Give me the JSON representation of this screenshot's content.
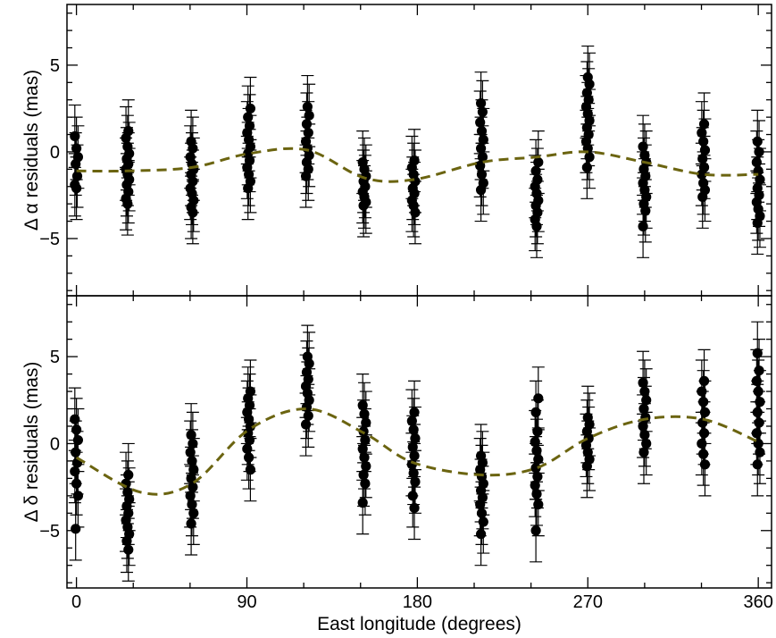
{
  "chart_data": [
    {
      "type": "scatter",
      "panel": "top",
      "ylabel": "Δ α residuals (mas)",
      "xlabel": "",
      "xlim": [
        -5,
        367
      ],
      "ylim": [
        -8.3,
        8.5
      ],
      "xticks": [
        0,
        90,
        180,
        270,
        360
      ],
      "yticks": [
        -5,
        0,
        5
      ],
      "ytick_labels": [
        "−5",
        "0",
        "5"
      ],
      "grid": false,
      "point_color": "#000000",
      "model_color": "#6b6410",
      "error_bar": 1.8,
      "clusters": [
        {
          "x": 0,
          "y": [
            0.9,
            0.2,
            -0.3,
            -0.7,
            -1.4,
            -1.9,
            -2.1
          ]
        },
        {
          "x": 27,
          "y": [
            1.2,
            0.8,
            0.3,
            -0.1,
            -0.4,
            -0.7,
            -1.0,
            -1.3,
            -1.6,
            -1.9,
            -2.3,
            -2.7,
            -3.0
          ]
        },
        {
          "x": 61,
          "y": [
            0.6,
            0.2,
            -0.3,
            -0.7,
            -1.0,
            -1.3,
            -1.7,
            -2.1,
            -2.4,
            -2.8,
            -3.2,
            -3.5
          ]
        },
        {
          "x": 91,
          "y": [
            2.5,
            2.0,
            1.5,
            1.1,
            0.7,
            0.3,
            -0.1,
            -0.5,
            -0.9,
            -1.3,
            -1.7,
            -2.1
          ]
        },
        {
          "x": 122,
          "y": [
            2.6,
            2.1,
            1.6,
            1.1,
            0.6,
            0.2,
            -0.2,
            -0.6,
            -1.0,
            -1.4
          ]
        },
        {
          "x": 152,
          "y": [
            -0.6,
            -1.0,
            -1.4,
            -1.7,
            -2.0,
            -2.3,
            -2.6,
            -2.9,
            -3.1
          ]
        },
        {
          "x": 178,
          "y": [
            -0.5,
            -0.9,
            -1.3,
            -1.7,
            -2.1,
            -2.4,
            -2.8,
            -3.1,
            -3.5
          ]
        },
        {
          "x": 214,
          "y": [
            2.8,
            2.3,
            1.7,
            1.2,
            0.7,
            0.2,
            -0.3,
            -0.8,
            -1.3,
            -1.8,
            -2.2
          ]
        },
        {
          "x": 243,
          "y": [
            -0.6,
            -1.1,
            -1.6,
            -2.0,
            -2.4,
            -2.8,
            -3.1,
            -3.5,
            -3.9,
            -4.3
          ]
        },
        {
          "x": 270,
          "y": [
            4.3,
            3.9,
            3.4,
            3.0,
            2.6,
            2.2,
            1.8,
            1.4,
            1.0,
            0.6,
            0.2,
            -0.3,
            -0.9
          ]
        },
        {
          "x": 300,
          "y": [
            0.3,
            -0.2,
            -0.6,
            -1.0,
            -1.4,
            -1.8,
            -2.2,
            -2.6,
            -3.0,
            -3.4,
            -4.3
          ]
        },
        {
          "x": 331,
          "y": [
            1.6,
            1.1,
            0.6,
            0.1,
            -0.4,
            -0.9,
            -1.3,
            -1.8,
            -2.2,
            -2.6
          ]
        },
        {
          "x": 360,
          "y": [
            0.6,
            0.0,
            -0.6,
            -1.1,
            -1.6,
            -2.1,
            -2.5,
            -2.9,
            -3.3,
            -3.7,
            -4.1
          ]
        }
      ],
      "model": {
        "x": [
          0,
          27,
          61,
          91,
          122,
          152,
          178,
          214,
          243,
          270,
          300,
          331,
          360
        ],
        "y": [
          -1.1,
          -1.1,
          -0.9,
          -0.1,
          0.1,
          -1.5,
          -1.6,
          -0.6,
          -0.3,
          0.0,
          -0.6,
          -1.3,
          -1.3
        ]
      }
    },
    {
      "type": "scatter",
      "panel": "bottom",
      "ylabel": "Δ δ residuals (mas)",
      "xlabel": "East longitude (degrees)",
      "xlim": [
        -5,
        367
      ],
      "ylim": [
        -8.3,
        8.5
      ],
      "xticks": [
        0,
        90,
        180,
        270,
        360
      ],
      "xtick_labels": [
        "0",
        "90",
        "180",
        "270",
        "360"
      ],
      "yticks": [
        -5,
        0,
        5
      ],
      "ytick_labels": [
        "−5",
        "0",
        "5"
      ],
      "grid": false,
      "point_color": "#000000",
      "model_color": "#6b6410",
      "error_bar": 1.8,
      "clusters": [
        {
          "x": 0,
          "y": [
            1.4,
            0.8,
            0.2,
            -0.5,
            -1.1,
            -1.6,
            -2.3,
            -3.0,
            -4.9
          ]
        },
        {
          "x": 27,
          "y": [
            -1.8,
            -2.3,
            -2.8,
            -3.2,
            -3.6,
            -4.0,
            -4.4,
            -4.8,
            -5.2,
            -5.6,
            -6.1
          ]
        },
        {
          "x": 61,
          "y": [
            0.5,
            0.0,
            -0.5,
            -1.0,
            -1.5,
            -2.0,
            -2.5,
            -3.0,
            -3.5,
            -4.0,
            -4.6
          ]
        },
        {
          "x": 91,
          "y": [
            3.0,
            2.6,
            2.2,
            1.8,
            1.4,
            1.0,
            0.6,
            0.2,
            -0.3,
            -0.8,
            -1.5
          ]
        },
        {
          "x": 122,
          "y": [
            5.0,
            4.6,
            4.1,
            3.7,
            3.3,
            2.9,
            2.5,
            2.1,
            1.6,
            1.1
          ]
        },
        {
          "x": 152,
          "y": [
            2.2,
            1.7,
            1.2,
            0.7,
            0.2,
            -0.3,
            -0.8,
            -1.3,
            -1.8,
            -2.3,
            -3.4
          ]
        },
        {
          "x": 178,
          "y": [
            1.8,
            1.3,
            0.8,
            0.3,
            -0.2,
            -0.7,
            -1.2,
            -1.7,
            -2.2,
            -3.0,
            -3.7
          ]
        },
        {
          "x": 214,
          "y": [
            -0.7,
            -1.1,
            -1.5,
            -1.9,
            -2.3,
            -2.7,
            -3.1,
            -3.5,
            -4.0,
            -4.5,
            -5.2
          ]
        },
        {
          "x": 243,
          "y": [
            2.6,
            1.8,
            0.7,
            0.1,
            -0.4,
            -0.9,
            -1.4,
            -1.9,
            -2.4,
            -2.9,
            -3.5,
            -5.0
          ]
        },
        {
          "x": 270,
          "y": [
            1.5,
            1.1,
            0.7,
            0.3,
            -0.1,
            -0.5,
            -0.9,
            -1.3
          ]
        },
        {
          "x": 300,
          "y": [
            3.5,
            3.0,
            2.5,
            2.0,
            1.5,
            1.0,
            0.5,
            0.0,
            -0.5
          ]
        },
        {
          "x": 331,
          "y": [
            3.6,
            3.0,
            2.4,
            1.8,
            1.2,
            0.6,
            0.0,
            -0.6,
            -1.2
          ]
        },
        {
          "x": 360,
          "y": [
            5.2,
            4.2,
            3.6,
            3.0,
            2.4,
            1.8,
            1.2,
            0.6,
            0.0,
            -0.5,
            -1.2
          ]
        }
      ],
      "model": {
        "x": [
          0,
          34,
          61,
          91,
          122,
          152,
          178,
          214,
          243,
          270,
          300,
          331,
          360
        ],
        "y": [
          -0.8,
          -2.8,
          -2.3,
          0.8,
          2.0,
          0.6,
          -1.1,
          -1.8,
          -1.4,
          0.3,
          1.4,
          1.4,
          0.1
        ]
      }
    }
  ]
}
